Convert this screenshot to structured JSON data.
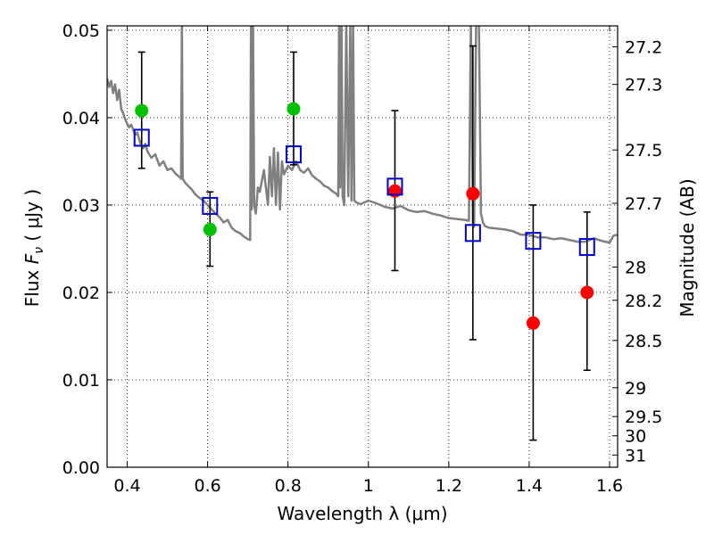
{
  "chart_data": {
    "type": "scatter",
    "xlabel": "Wavelength  λ (μm)",
    "ylabel_prefix": "Flux  ",
    "ylabel_symbol": "F",
    "ylabel_subscript": "ν",
    "ylabel_unit": "  ( μJy )",
    "ylabel_right": "Magnitude (AB)",
    "xlim": [
      0.35,
      1.62
    ],
    "ylim": [
      0.0,
      0.0505
    ],
    "grid": true,
    "grid_style": "dotted",
    "x_ticks": [
      0.4,
      0.6,
      0.8,
      1.0,
      1.2,
      1.4,
      1.6
    ],
    "x_tick_labels": [
      "0.4",
      "0.6",
      "0.8",
      "1",
      "1.2",
      "1.4",
      "1.6"
    ],
    "y_ticks": [
      0.0,
      0.01,
      0.02,
      0.03,
      0.04,
      0.05
    ],
    "y_tick_labels": [
      "0.00",
      "0.01",
      "0.02",
      "0.03",
      "0.04",
      "0.05"
    ],
    "right_ticks": [
      {
        "label": "27.2",
        "flux": 0.0481
      },
      {
        "label": "27.3",
        "flux": 0.0438
      },
      {
        "label": "27.5",
        "flux": 0.0363
      },
      {
        "label": "27.7",
        "flux": 0.0302
      },
      {
        "label": "28",
        "flux": 0.0229
      },
      {
        "label": "28.2",
        "flux": 0.0191
      },
      {
        "label": "28.5",
        "flux": 0.0145
      },
      {
        "label": "29",
        "flux": 0.0091
      },
      {
        "label": "29.5",
        "flux": 0.0058
      },
      {
        "label": "30",
        "flux": 0.0036
      },
      {
        "label": "31",
        "flux": 0.0014
      }
    ],
    "colors": {
      "model": "#808080",
      "observed_optical": "#00c000",
      "observed_nir": "#ff0000",
      "model_photometry": "#0000cc",
      "errorbar": "#000000",
      "grid": "#000000"
    },
    "model_spectrum": {
      "x": [
        0.35,
        0.355,
        0.36,
        0.365,
        0.37,
        0.375,
        0.38,
        0.385,
        0.39,
        0.395,
        0.4,
        0.405,
        0.41,
        0.415,
        0.42,
        0.425,
        0.43,
        0.435,
        0.44,
        0.445,
        0.45,
        0.46,
        0.47,
        0.48,
        0.49,
        0.5,
        0.51,
        0.52,
        0.53,
        0.534,
        0.536,
        0.538,
        0.545,
        0.56,
        0.57,
        0.58,
        0.59,
        0.6,
        0.61,
        0.62,
        0.63,
        0.64,
        0.65,
        0.66,
        0.67,
        0.68,
        0.69,
        0.7,
        0.706,
        0.708,
        0.71,
        0.713,
        0.716,
        0.72,
        0.725,
        0.73,
        0.74,
        0.75,
        0.755,
        0.76,
        0.765,
        0.77,
        0.775,
        0.78,
        0.785,
        0.79,
        0.8,
        0.81,
        0.82,
        0.83,
        0.84,
        0.85,
        0.86,
        0.87,
        0.88,
        0.89,
        0.9,
        0.91,
        0.92,
        0.925,
        0.927,
        0.93,
        0.933,
        0.936,
        0.94,
        0.945,
        0.95,
        0.955,
        0.958,
        0.962,
        0.965,
        0.97,
        0.98,
        0.99,
        1.0,
        1.02,
        1.04,
        1.06,
        1.08,
        1.1,
        1.12,
        1.14,
        1.16,
        1.18,
        1.2,
        1.22,
        1.24,
        1.25,
        1.255,
        1.26,
        1.263,
        1.268,
        1.275,
        1.28,
        1.285,
        1.29,
        1.3,
        1.32,
        1.34,
        1.36,
        1.38,
        1.4,
        1.42,
        1.44,
        1.46,
        1.48,
        1.5,
        1.52,
        1.54,
        1.56,
        1.58,
        1.6,
        1.61,
        1.62
      ],
      "y": [
        0.0445,
        0.0435,
        0.0442,
        0.0428,
        0.0438,
        0.042,
        0.0432,
        0.041,
        0.0405,
        0.0398,
        0.0393,
        0.0389,
        0.0392,
        0.0386,
        0.038,
        0.0383,
        0.0375,
        0.0368,
        0.0365,
        0.037,
        0.0362,
        0.0354,
        0.0358,
        0.0345,
        0.035,
        0.034,
        0.0342,
        0.0336,
        0.0332,
        0.033,
        0.051,
        0.033,
        0.0325,
        0.0318,
        0.0312,
        0.0308,
        0.0305,
        0.03,
        0.0295,
        0.029,
        0.0286,
        0.028,
        0.0283,
        0.0274,
        0.027,
        0.0268,
        0.0264,
        0.0261,
        0.026,
        0.051,
        0.0295,
        0.051,
        0.03,
        0.029,
        0.032,
        0.0315,
        0.034,
        0.03,
        0.0355,
        0.031,
        0.0365,
        0.03,
        0.036,
        0.0295,
        0.035,
        0.0335,
        0.0345,
        0.034,
        0.035,
        0.034,
        0.0337,
        0.0342,
        0.0334,
        0.033,
        0.0327,
        0.0322,
        0.032,
        0.0316,
        0.0313,
        0.031,
        0.051,
        0.032,
        0.051,
        0.031,
        0.03,
        0.051,
        0.031,
        0.051,
        0.0305,
        0.051,
        0.0305,
        0.0303,
        0.0301,
        0.0303,
        0.0305,
        0.0302,
        0.0298,
        0.0296,
        0.0299,
        0.0294,
        0.0292,
        0.0293,
        0.029,
        0.0288,
        0.0285,
        0.0284,
        0.0283,
        0.0282,
        0.051,
        0.0278,
        0.0275,
        0.051,
        0.051,
        0.029,
        0.028,
        0.0276,
        0.0274,
        0.0273,
        0.0272,
        0.027,
        0.0266,
        0.0266,
        0.0263,
        0.0263,
        0.0261,
        0.0262,
        0.026,
        0.0258,
        0.0258,
        0.0262,
        0.0259,
        0.0257,
        0.0265,
        0.0266
      ]
    },
    "observed_points": [
      {
        "x": 0.436,
        "y": 0.0408,
        "err_low": 0.0342,
        "err_high": 0.0475,
        "color": "#00c000"
      },
      {
        "x": 0.606,
        "y": 0.0272,
        "err_low": 0.023,
        "err_high": 0.0315,
        "color": "#00c000"
      },
      {
        "x": 0.814,
        "y": 0.041,
        "err_low": 0.0346,
        "err_high": 0.0475,
        "color": "#00c000"
      },
      {
        "x": 1.066,
        "y": 0.0316,
        "err_low": 0.0225,
        "err_high": 0.0408,
        "color": "#ff0000"
      },
      {
        "x": 1.26,
        "y": 0.0313,
        "err_low": 0.0146,
        "err_high": 0.0482,
        "color": "#ff0000"
      },
      {
        "x": 1.41,
        "y": 0.0165,
        "err_low": 0.0031,
        "err_high": 0.03,
        "color": "#ff0000"
      },
      {
        "x": 1.544,
        "y": 0.02,
        "err_low": 0.0111,
        "err_high": 0.0292,
        "color": "#ff0000"
      }
    ],
    "model_photometry": [
      {
        "x": 0.436,
        "y": 0.0377
      },
      {
        "x": 0.606,
        "y": 0.0299
      },
      {
        "x": 0.814,
        "y": 0.0358
      },
      {
        "x": 1.066,
        "y": 0.0321
      },
      {
        "x": 1.26,
        "y": 0.0268
      },
      {
        "x": 1.41,
        "y": 0.0259
      },
      {
        "x": 1.544,
        "y": 0.0252
      }
    ]
  }
}
